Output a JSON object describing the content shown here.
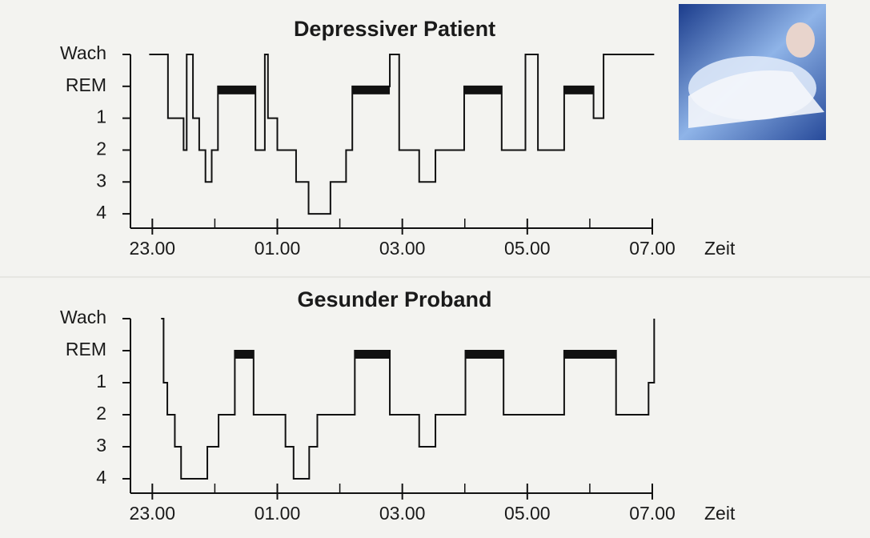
{
  "chart_data": [
    {
      "type": "step",
      "title": "Depressiver Patient",
      "x_label": "Zeit",
      "x": [
        22.95,
        23.25,
        23.5,
        23.55,
        23.65,
        23.75,
        23.85,
        23.95,
        24.05,
        24.65,
        24.8,
        24.85,
        25.0,
        25.3,
        25.5,
        25.85,
        26.1,
        26.2,
        26.8,
        26.95,
        27.27,
        27.53,
        27.99,
        28.59,
        28.97,
        29.17,
        29.59,
        30.06,
        30.22,
        31.03
      ],
      "values": [
        -1,
        1,
        2,
        -1,
        1,
        2,
        3,
        2,
        0,
        2,
        -1,
        1,
        2,
        3,
        4,
        3,
        2,
        0,
        -1,
        2,
        3,
        2,
        0,
        2,
        -1,
        2,
        0,
        1,
        -1,
        -1
      ],
      "xlim": [
        22.65,
        31
      ],
      "xticks": [
        {
          "value": 23,
          "label": "23.00"
        },
        {
          "value": 25,
          "label": "01.00"
        },
        {
          "value": 27,
          "label": "03.00"
        },
        {
          "value": 29,
          "label": "05.00"
        },
        {
          "value": 31,
          "label": "07.00"
        }
      ],
      "minor_xticks": [
        24,
        26,
        28,
        30
      ],
      "ylim": [
        4.45,
        -1
      ],
      "yticks": [
        {
          "value": -1,
          "label": "Wach"
        },
        {
          "value": 0,
          "label": "REM"
        },
        1,
        2,
        3,
        4
      ],
      "color": "#111111"
    },
    {
      "type": "step",
      "title": "Gesunder Proband",
      "x_label": "Zeit",
      "x": [
        23.14,
        23.18,
        23.24,
        23.36,
        23.46,
        23.88,
        24.06,
        24.32,
        24.62,
        25.13,
        25.26,
        25.51,
        25.64,
        26.24,
        26.8,
        27.27,
        27.53,
        28.01,
        28.62,
        29.59,
        30.42,
        30.94,
        31.03
      ],
      "values": [
        -1,
        1,
        2,
        3,
        4,
        3,
        2,
        0,
        2,
        3,
        4,
        3,
        2,
        0,
        2,
        3,
        2,
        0,
        2,
        0,
        2,
        1,
        -1
      ],
      "xlim": [
        22.65,
        31
      ],
      "xticks": [
        {
          "value": 23,
          "label": "23.00"
        },
        {
          "value": 25,
          "label": "01.00"
        },
        {
          "value": 27,
          "label": "03.00"
        },
        {
          "value": 29,
          "label": "05.00"
        },
        {
          "value": 31,
          "label": "07.00"
        }
      ],
      "minor_xticks": [
        24,
        26,
        28,
        30
      ],
      "ylim": [
        4.45,
        -1
      ],
      "yticks": [
        {
          "value": -1,
          "label": "Wach"
        },
        {
          "value": 0,
          "label": "REM"
        },
        1,
        2,
        3,
        4
      ],
      "color": "#111111"
    }
  ]
}
